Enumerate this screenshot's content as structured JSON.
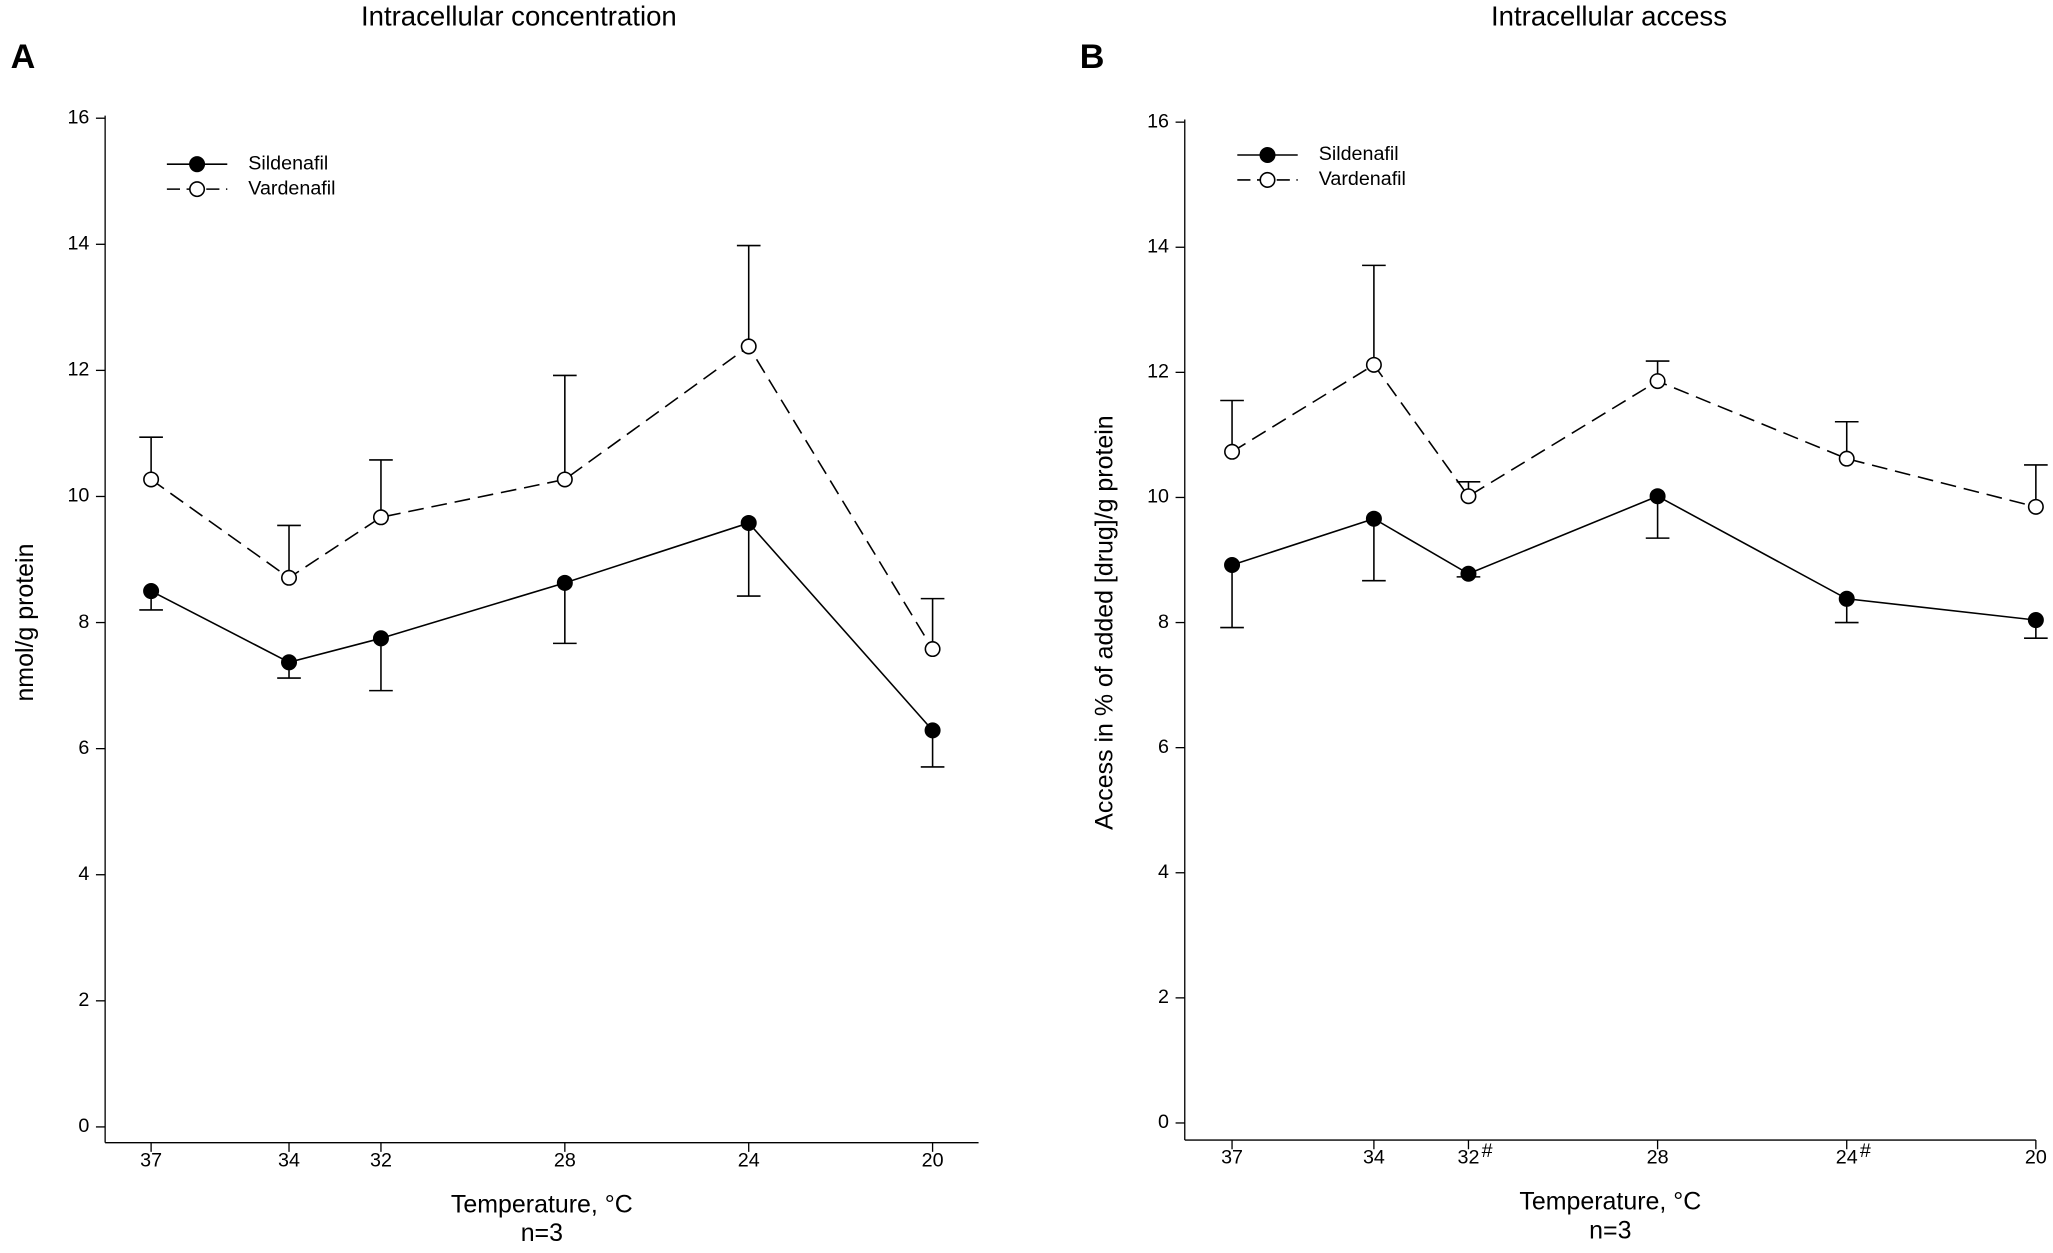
{
  "chart_data": [
    {
      "type": "line",
      "panel": "A",
      "title": "Intracellular concentration",
      "xlabel": "Temperature, °C",
      "note": "n=3",
      "ylabel": "nmol/g protein",
      "x": [
        37,
        34,
        32,
        28,
        24,
        20
      ],
      "xlim": [
        38,
        19
      ],
      "xticks": [
        37,
        34,
        32,
        28,
        24,
        20
      ],
      "ylim": [
        0,
        16
      ],
      "yticks": [
        0,
        2,
        4,
        6,
        8,
        10,
        12,
        14,
        16
      ],
      "legend": "upper-left",
      "series": [
        {
          "name": "Sildenafil",
          "color": "#000000",
          "marker": "filled",
          "dash": "solid",
          "error_direction": "down",
          "values": [
            8.5,
            7.37,
            7.75,
            8.63,
            9.58,
            6.29
          ],
          "errors": [
            0.3,
            0.25,
            0.83,
            0.96,
            1.16,
            0.58
          ]
        },
        {
          "name": "Vardenafil",
          "color": "#000000",
          "marker": "open",
          "dash": "dashed",
          "error_direction": "up",
          "values": [
            10.27,
            8.71,
            9.67,
            10.27,
            12.38,
            7.58
          ],
          "errors": [
            0.67,
            0.83,
            0.91,
            1.65,
            1.6,
            0.8
          ]
        }
      ]
    },
    {
      "type": "line",
      "panel": "B",
      "title": "Intracellular access",
      "xlabel": "Temperature, °C",
      "note": "n=3",
      "ylabel": "Access in % of added [drug]/g protein",
      "x": [
        37,
        34,
        32,
        28,
        24,
        20
      ],
      "xlim": [
        38,
        20
      ],
      "xticks": [
        37,
        34,
        32,
        28,
        24,
        20
      ],
      "annotations": [
        {
          "x": 32,
          "text": "#"
        },
        {
          "x": 24,
          "text": "#"
        }
      ],
      "ylim": [
        0,
        16
      ],
      "yticks": [
        0,
        2,
        4,
        6,
        8,
        10,
        12,
        14,
        16
      ],
      "legend": "upper-left",
      "series": [
        {
          "name": "Sildenafil",
          "color": "#000000",
          "marker": "filled",
          "dash": "solid",
          "error_direction": "down",
          "values": [
            8.92,
            9.66,
            8.78,
            10.02,
            8.38,
            8.04
          ],
          "errors": [
            1.0,
            0.99,
            0.05,
            0.67,
            0.38,
            0.29
          ]
        },
        {
          "name": "Vardenafil",
          "color": "#000000",
          "marker": "open",
          "dash": "dashed",
          "error_direction": "up",
          "values": [
            10.73,
            12.12,
            10.02,
            11.86,
            10.62,
            9.85
          ],
          "errors": [
            0.82,
            1.59,
            0.23,
            0.32,
            0.59,
            0.67
          ]
        }
      ]
    }
  ]
}
